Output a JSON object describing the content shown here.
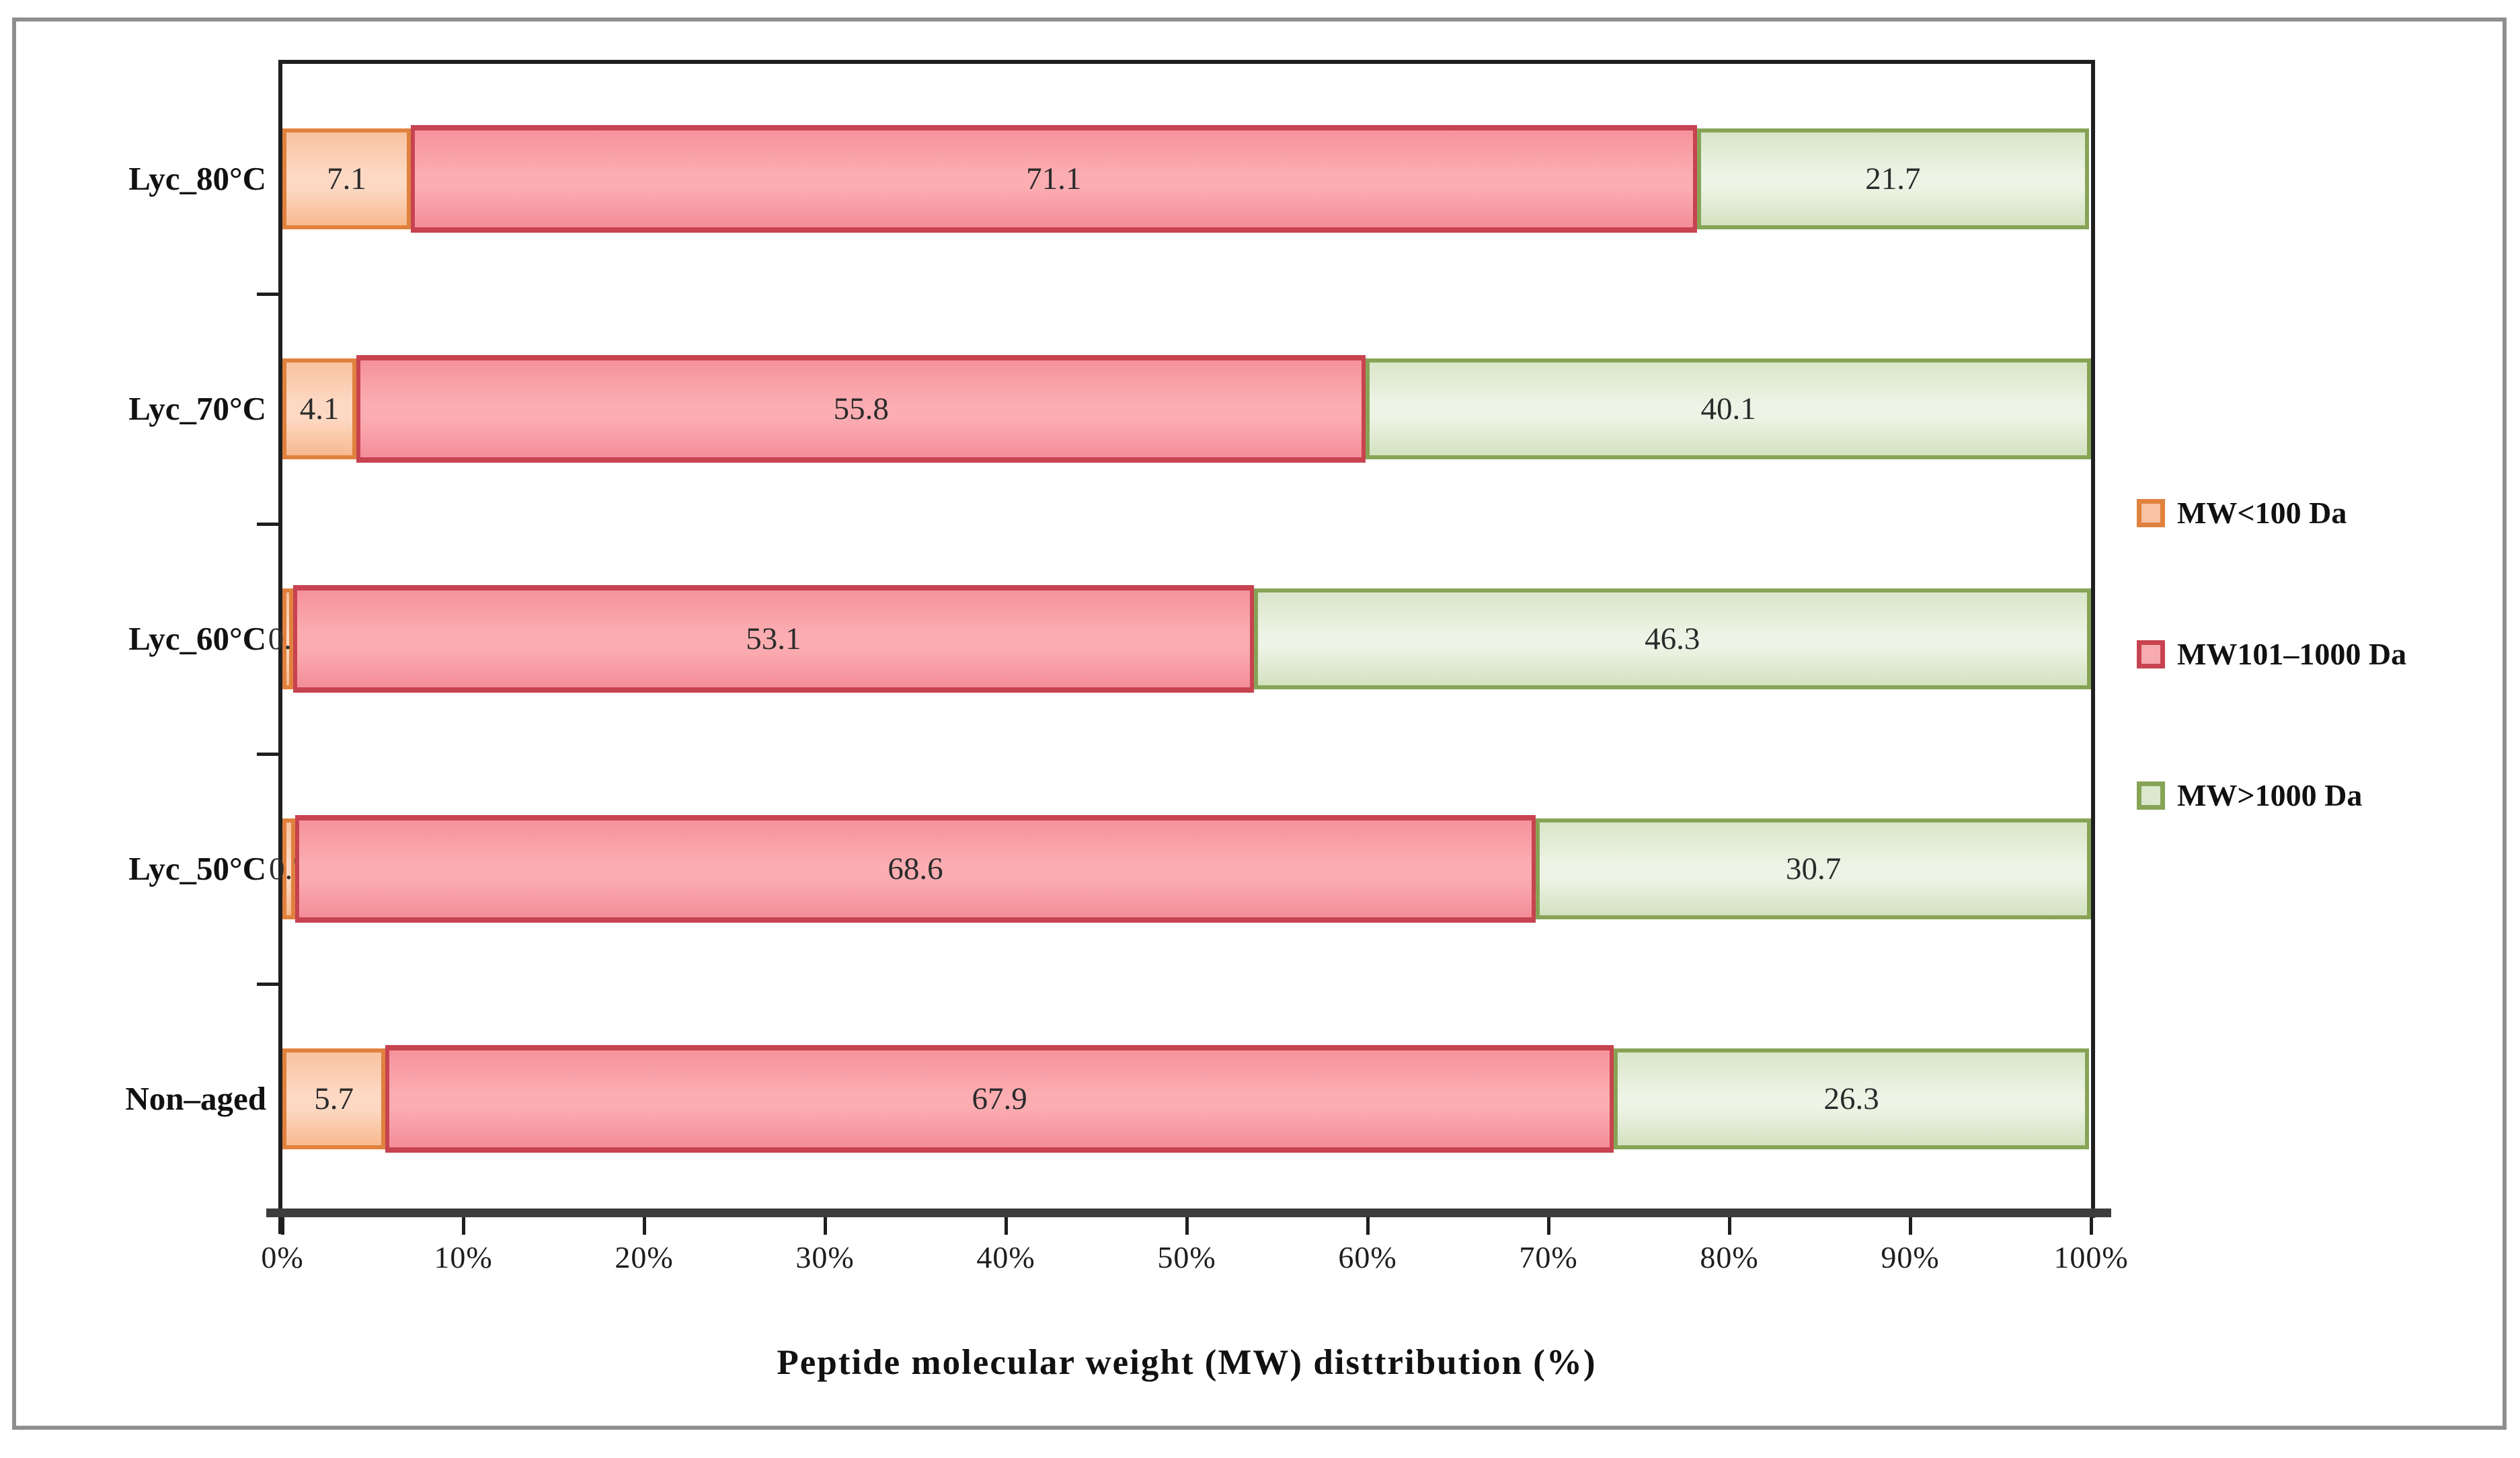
{
  "figure": {
    "background_color": "#ffffff",
    "frame_border_color": "#8f8f8f",
    "axis_line_color": "#1f1f1f",
    "bottom_axis_color": "#3c3c3c"
  },
  "chart_data": {
    "type": "bar",
    "orientation": "horizontal",
    "stacked": true,
    "title": "",
    "xlabel": "Peptide molecular weight (MW) disttribution (%)",
    "ylabel": "",
    "xlim": [
      0,
      100
    ],
    "grid": false,
    "legend_position": "right",
    "x_ticks": [
      "0%",
      "10%",
      "20%",
      "30%",
      "40%",
      "50%",
      "60%",
      "70%",
      "80%",
      "90%",
      "100%"
    ],
    "categories": [
      "Lyc_80°C",
      "Lyc_70°C",
      "Lyc_60°C",
      "Lyc_50°C",
      "Non–aged"
    ],
    "series": [
      {
        "name": "MW<100 Da",
        "values": [
          7.1,
          4.1,
          0.6,
          0.7,
          5.7
        ],
        "border_color": "#e0813d",
        "fill_gradient": [
          "#f8c2a0",
          "#fdd9c4",
          "#f7b98f"
        ],
        "swatch_fill": "#f9c2a2"
      },
      {
        "name": "MW101–1000 Da",
        "values": [
          71.1,
          55.8,
          53.1,
          68.6,
          67.9
        ],
        "border_color": "#c74350",
        "fill_gradient": [
          "#f5929c",
          "#fbadb1",
          "#f48d99"
        ],
        "swatch_fill": "#f7aab0"
      },
      {
        "name": "MW>1000 Da",
        "values": [
          21.7,
          40.1,
          46.3,
          30.7,
          26.3
        ],
        "border_color": "#87a356",
        "fill_gradient": [
          "#d9e6c9",
          "#edf3e5",
          "#d3e2c0"
        ],
        "swatch_fill": "#dce8cd"
      }
    ]
  }
}
